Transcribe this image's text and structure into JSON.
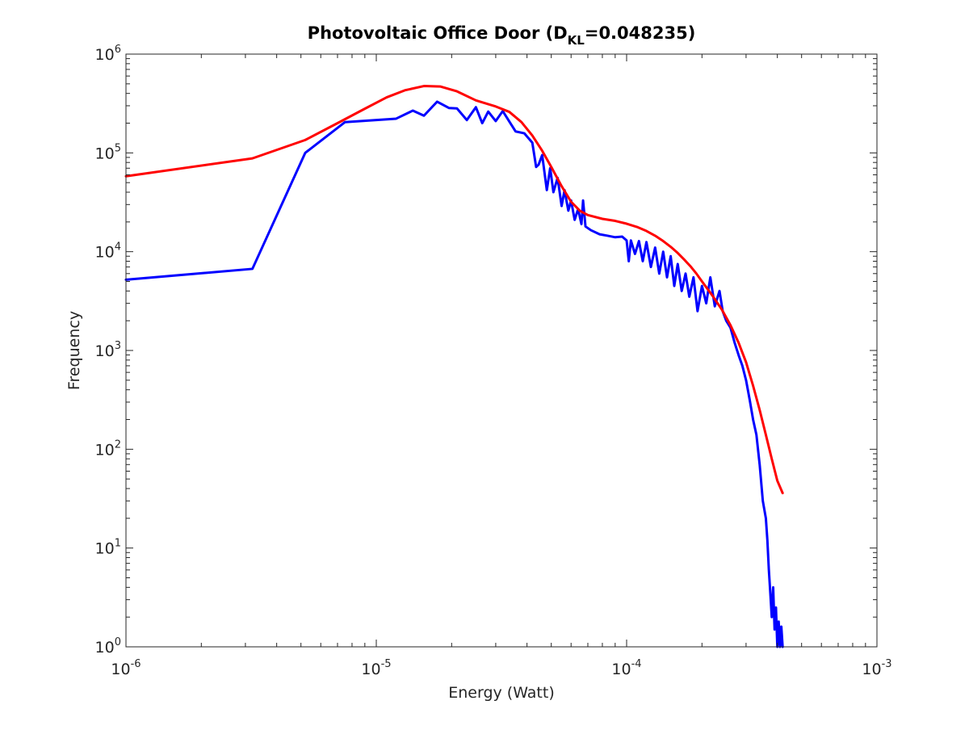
{
  "chart_data": {
    "type": "line",
    "title": "Photovoltaic Office Door (D",
    "title_sub": "KL",
    "title_tail": "=0.048235)",
    "xlabel": "Energy (Watt)",
    "ylabel": "Frequency",
    "xscale": "log",
    "yscale": "log",
    "xlim": [
      1e-06,
      0.001
    ],
    "ylim": [
      1,
      1000000
    ],
    "grid": false,
    "x_ticks": [
      {
        "base": "10",
        "exp": "-6",
        "value": 1e-06
      },
      {
        "base": "10",
        "exp": "-5",
        "value": 1e-05
      },
      {
        "base": "10",
        "exp": "-4",
        "value": 0.0001
      },
      {
        "base": "10",
        "exp": "-3",
        "value": 0.001
      }
    ],
    "y_ticks": [
      {
        "base": "10",
        "exp": "0",
        "value": 1
      },
      {
        "base": "10",
        "exp": "1",
        "value": 10
      },
      {
        "base": "10",
        "exp": "2",
        "value": 100
      },
      {
        "base": "10",
        "exp": "3",
        "value": 1000
      },
      {
        "base": "10",
        "exp": "4",
        "value": 10000
      },
      {
        "base": "10",
        "exp": "5",
        "value": 100000
      },
      {
        "base": "10",
        "exp": "6",
        "value": 1000000
      }
    ],
    "series": [
      {
        "color": "#0000ff",
        "x": [
          1e-06,
          3.2e-06,
          5.2e-06,
          7.5e-06,
          1.2e-05,
          1.4e-05,
          1.55e-05,
          1.75e-05,
          1.95e-05,
          2.1e-05,
          2.3e-05,
          2.5e-05,
          2.65e-05,
          2.8e-05,
          3e-05,
          3.2e-05,
          3.6e-05,
          3.9e-05,
          4.2e-05,
          4.35e-05,
          4.45e-05,
          4.6e-05,
          4.8e-05,
          4.95e-05,
          5.1e-05,
          5.3e-05,
          5.5e-05,
          5.65e-05,
          5.85e-05,
          6e-05,
          6.2e-05,
          6.4e-05,
          6.6e-05,
          6.7e-05,
          6.85e-05,
          7.2e-05,
          7.8e-05,
          8.4e-05,
          9e-05,
          9.6e-05,
          0.0001,
          0.000102,
          0.000104,
          0.000108,
          0.000112,
          0.000116,
          0.00012,
          0.000125,
          0.00013,
          0.000135,
          0.00014,
          0.000145,
          0.00015,
          0.000155,
          0.00016,
          0.000166,
          0.000172,
          0.000178,
          0.000185,
          0.000192,
          0.0002,
          0.000208,
          0.000216,
          0.000225,
          0.000235,
          0.000242,
          0.00025,
          0.00026,
          0.00027,
          0.00028,
          0.00029,
          0.0003,
          0.00031,
          0.00032,
          0.00033,
          0.00034,
          0.00035,
          0.00036,
          0.000365,
          0.00037,
          0.000375,
          0.00038,
          0.000385,
          0.00039,
          0.000395,
          0.0004,
          0.000405,
          0.00041,
          0.000415,
          0.00042
        ],
        "y": [
          5200,
          6700,
          100000,
          205000,
          222000,
          268000,
          238000,
          330000,
          285000,
          282000,
          215000,
          290000,
          200000,
          262000,
          210000,
          265000,
          165000,
          158000,
          127000,
          72000,
          76000,
          95000,
          42000,
          70000,
          40000,
          56000,
          29000,
          42000,
          26000,
          33000,
          21000,
          27000,
          19000,
          33000,
          18000,
          16500,
          15000,
          14500,
          14000,
          14200,
          13000,
          8000,
          13000,
          9500,
          12800,
          8000,
          12500,
          7000,
          11000,
          6000,
          10000,
          5500,
          9000,
          4500,
          7500,
          4000,
          6000,
          3500,
          5500,
          2500,
          4500,
          3000,
          5500,
          2800,
          4000,
          2500,
          2000,
          1700,
          1200,
          900,
          700,
          500,
          320,
          200,
          140,
          70,
          30,
          20,
          12,
          6,
          3.5,
          2,
          4,
          1.5,
          2.5,
          1,
          1.8,
          1,
          1.6,
          1
        ]
      },
      {
        "color": "#ff0000",
        "x": [
          1e-06,
          3.2e-06,
          5.2e-06,
          7e-06,
          9e-06,
          1.1e-05,
          1.3e-05,
          1.55e-05,
          1.8e-05,
          2.1e-05,
          2.5e-05,
          3e-05,
          3.4e-05,
          3.8e-05,
          4.2e-05,
          4.6e-05,
          5e-05,
          5.5e-05,
          6e-05,
          6.5e-05,
          7e-05,
          8e-05,
          9e-05,
          0.0001,
          0.00011,
          0.00012,
          0.00013,
          0.00014,
          0.00015,
          0.00016,
          0.00017,
          0.00018,
          0.00019,
          0.0002,
          0.00022,
          0.00024,
          0.00026,
          0.00028,
          0.0003,
          0.00032,
          0.00034,
          0.00036,
          0.00038,
          0.0004,
          0.00042
        ],
        "y": [
          58000,
          88000,
          135000,
          200000,
          280000,
          365000,
          430000,
          475000,
          470000,
          420000,
          340000,
          295000,
          260000,
          205000,
          150000,
          105000,
          72000,
          46000,
          32000,
          26000,
          23500,
          21500,
          20500,
          19200,
          17800,
          16200,
          14500,
          12800,
          11200,
          9700,
          8300,
          7100,
          6000,
          5000,
          3600,
          2600,
          1800,
          1200,
          760,
          440,
          250,
          140,
          80,
          48,
          36
        ]
      }
    ]
  }
}
